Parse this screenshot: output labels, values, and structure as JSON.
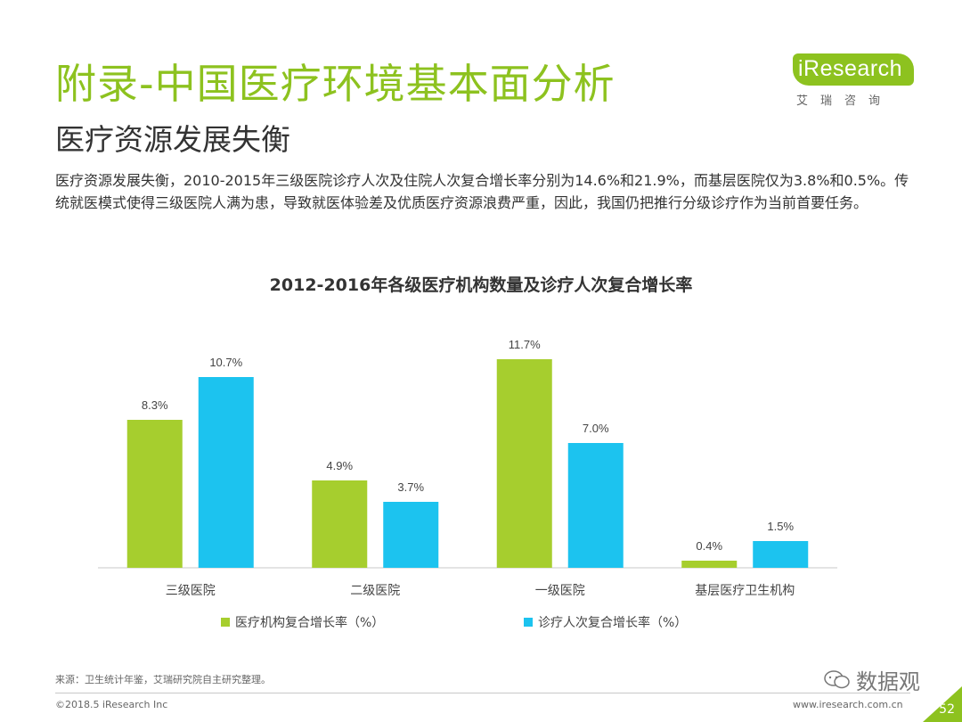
{
  "header": {
    "title": "附录-中国医疗环境基本面分析",
    "subtitle": "医疗资源发展失衡",
    "description": "医疗资源发展失衡，2010-2015年三级医院诊疗人次及住院人次复合增长率分别为14.6%和21.9%，而基层医院仅为3.8%和0.5%。传统就医模式使得三级医院人满为患，导致就医体验差及优质医疗资源浪费严重，因此，我国仍把推行分级诊疗作为当前首要任务。"
  },
  "logo": {
    "name": "iResearch",
    "subtitle": "艾瑞咨询"
  },
  "colors": {
    "brand": "#8dc21f",
    "series1": "#a6ce2e",
    "series2": "#1cc3ef"
  },
  "chart_data": {
    "type": "bar",
    "title": "2012-2016年各级医疗机构数量及诊疗人次复合增长率",
    "categories": [
      "三级医院",
      "二级医院",
      "一级医院",
      "基层医疗卫生机构"
    ],
    "series": [
      {
        "name": "医疗机构复合增长率（%）",
        "values": [
          8.3,
          4.9,
          11.7,
          0.4
        ],
        "labels": [
          "8.3%",
          "4.9%",
          "11.7%",
          "0.4%"
        ],
        "color": "#a6ce2e"
      },
      {
        "name": "诊疗人次复合增长率（%）",
        "values": [
          10.7,
          3.7,
          7.0,
          1.5
        ],
        "labels": [
          "10.7%",
          "3.7%",
          "7.0%",
          "1.5%"
        ],
        "color": "#1cc3ef"
      }
    ],
    "ylim": [
      0,
      12.5
    ],
    "grid": false,
    "legend": "bottom"
  },
  "footer": {
    "source": "来源：卫生统计年鉴，艾瑞研究院自主研究整理。",
    "copyright": "©2018.5 iResearch Inc",
    "website": "www.iresearch.com.cn",
    "page_number": "52",
    "watermark": "数据观"
  }
}
